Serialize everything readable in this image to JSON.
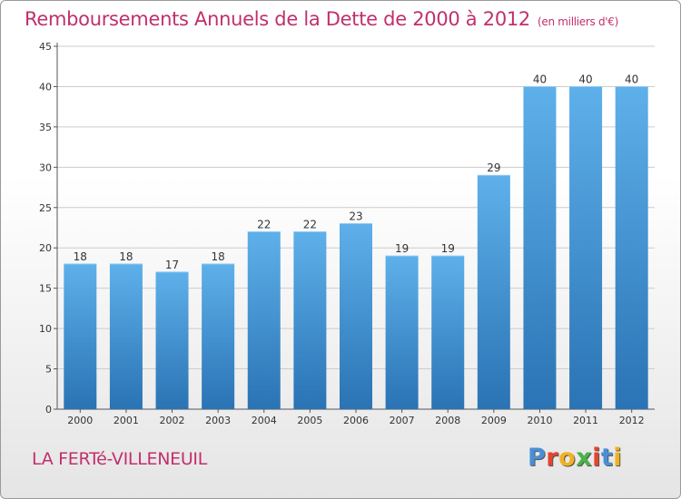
{
  "title": "Remboursements Annuels de la Dette de 2000 à 2012",
  "unit_note": "(en milliers d'€)",
  "location": "LA FERTé-VILLENEUIL",
  "logo": {
    "text": "Proxiti",
    "colors": [
      "#4a8fd4",
      "#e8432e",
      "#f2b11e",
      "#4ab34a",
      "#e8432e",
      "#4a8fd4",
      "#f2b11e"
    ]
  },
  "colors": {
    "title": "#c0306d",
    "bar_top": "#5eb0ea",
    "bar_bottom": "#2a73b4",
    "grid": "#cccccc"
  },
  "chart_data": {
    "type": "bar",
    "categories": [
      "2000",
      "2001",
      "2002",
      "2003",
      "2004",
      "2005",
      "2006",
      "2007",
      "2008",
      "2009",
      "2010",
      "2011",
      "2012"
    ],
    "values": [
      18,
      18,
      17,
      18,
      22,
      22,
      23,
      19,
      19,
      29,
      40,
      40,
      40
    ],
    "yticks": [
      0,
      5,
      10,
      15,
      20,
      25,
      30,
      35,
      40,
      45
    ],
    "ylim": [
      0,
      45
    ],
    "grid": true,
    "data_labels": true
  }
}
